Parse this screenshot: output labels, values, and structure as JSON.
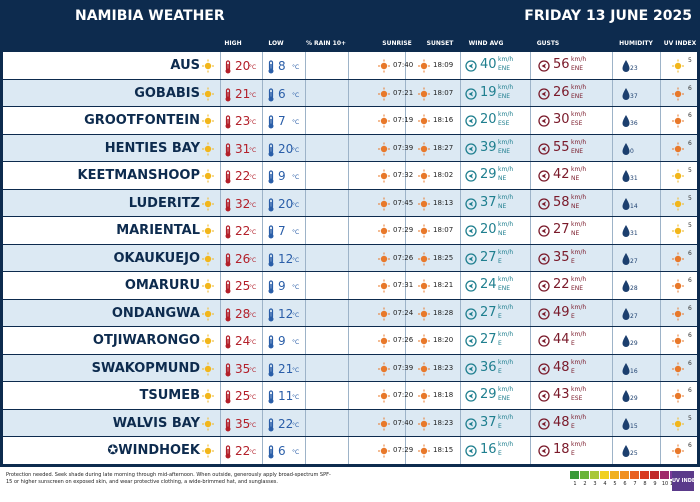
{
  "header": {
    "title": "NAMIBIA WEATHER",
    "date": "FRIDAY 13 JUNE 2025"
  },
  "columns": {
    "high": "HIGH",
    "low": "LOW",
    "rain": "% RAIN 10+",
    "sunrise": "SUNRISE",
    "sunset": "SUNSET",
    "wind": "WIND AVG",
    "gusts": "GUSTS",
    "humidity": "HUMIDITY",
    "uv": "UV INDEX"
  },
  "units": {
    "temp": "°C",
    "speed": "km/h"
  },
  "rows": [
    {
      "city": "AUS",
      "high": 20,
      "low": 8,
      "sunrise": "07:40",
      "sunset": "18:09",
      "wind": 40,
      "wind_dir": "ENE",
      "gust": 56,
      "gust_dir": "ENE",
      "humidity": 23,
      "uv": 5
    },
    {
      "city": "GOBABIS",
      "high": 21,
      "low": 6,
      "sunrise": "07:21",
      "sunset": "18:07",
      "wind": 19,
      "wind_dir": "ENE",
      "gust": 26,
      "gust_dir": "ENE",
      "humidity": 37,
      "uv": 6
    },
    {
      "city": "GROOTFONTEIN",
      "high": 23,
      "low": 7,
      "sunrise": "07:19",
      "sunset": "18:16",
      "wind": 20,
      "wind_dir": "ESE",
      "gust": 30,
      "gust_dir": "ESE",
      "humidity": 36,
      "uv": 6
    },
    {
      "city": "HENTIES BAY",
      "high": 31,
      "low": 20,
      "sunrise": "07:39",
      "sunset": "18:27",
      "wind": 39,
      "wind_dir": "ENE",
      "gust": 55,
      "gust_dir": "ENE",
      "humidity": 0,
      "uv": 6
    },
    {
      "city": "KEETMANSHOOP",
      "high": 22,
      "low": 9,
      "sunrise": "07:32",
      "sunset": "18:02",
      "wind": 29,
      "wind_dir": "NE",
      "gust": 42,
      "gust_dir": "NE",
      "humidity": 31,
      "uv": 5
    },
    {
      "city": "LUDERITZ",
      "high": 32,
      "low": 20,
      "sunrise": "07:45",
      "sunset": "18:13",
      "wind": 37,
      "wind_dir": "NE",
      "gust": 58,
      "gust_dir": "NE",
      "humidity": 14,
      "uv": 5
    },
    {
      "city": "MARIENTAL",
      "high": 22,
      "low": 7,
      "sunrise": "07:29",
      "sunset": "18:07",
      "wind": 20,
      "wind_dir": "NE",
      "gust": 27,
      "gust_dir": "NE",
      "humidity": 31,
      "uv": 5
    },
    {
      "city": "OKAUKUEJO",
      "high": 26,
      "low": 12,
      "sunrise": "07:26",
      "sunset": "18:25",
      "wind": 27,
      "wind_dir": "E",
      "gust": 35,
      "gust_dir": "E",
      "humidity": 27,
      "uv": 6
    },
    {
      "city": "OMARURU",
      "high": 25,
      "low": 9,
      "sunrise": "07:31",
      "sunset": "18:21",
      "wind": 24,
      "wind_dir": "ENE",
      "gust": 22,
      "gust_dir": "ENE",
      "humidity": 28,
      "uv": 6
    },
    {
      "city": "ONDANGWA",
      "high": 28,
      "low": 12,
      "sunrise": "07:24",
      "sunset": "18:28",
      "wind": 27,
      "wind_dir": "E",
      "gust": 49,
      "gust_dir": "E",
      "humidity": 27,
      "uv": 6
    },
    {
      "city": "OTJIWARONGO",
      "high": 24,
      "low": 9,
      "sunrise": "07:26",
      "sunset": "18:20",
      "wind": 27,
      "wind_dir": "E",
      "gust": 44,
      "gust_dir": "E",
      "humidity": 29,
      "uv": 6
    },
    {
      "city": "SWAKOPMUND",
      "high": 35,
      "low": 21,
      "sunrise": "07:39",
      "sunset": "18:23",
      "wind": 36,
      "wind_dir": "E",
      "gust": 48,
      "gust_dir": "E",
      "humidity": 16,
      "uv": 6
    },
    {
      "city": "TSUMEB",
      "high": 25,
      "low": 11,
      "sunrise": "07:20",
      "sunset": "18:18",
      "wind": 29,
      "wind_dir": "ENE",
      "gust": 43,
      "gust_dir": "ESE",
      "humidity": 29,
      "uv": 6
    },
    {
      "city": "WALVIS BAY",
      "high": 35,
      "low": 22,
      "sunrise": "07:40",
      "sunset": "18:23",
      "wind": 37,
      "wind_dir": "E",
      "gust": 48,
      "gust_dir": "E",
      "humidity": 15,
      "uv": 5
    },
    {
      "city": "✪WINDHOEK",
      "high": 22,
      "low": 6,
      "sunrise": "07:29",
      "sunset": "18:15",
      "wind": 16,
      "wind_dir": "E",
      "gust": 18,
      "gust_dir": "E",
      "humidity": 25,
      "uv": 6
    }
  ],
  "footer": {
    "note": "Protection needed. Seek shade during late morning through mid-afternoon. When outside, generously apply broad-spectrum SPF-15 or higher sunscreen on exposed skin, and wear protective clothing, a wide-brimmed hat, and sunglasses.",
    "uv_scale": [
      "1",
      "2",
      "3",
      "4",
      "5",
      "6",
      "7",
      "8",
      "9",
      "10",
      "11+"
    ],
    "uv_label": "UV INDEX"
  }
}
